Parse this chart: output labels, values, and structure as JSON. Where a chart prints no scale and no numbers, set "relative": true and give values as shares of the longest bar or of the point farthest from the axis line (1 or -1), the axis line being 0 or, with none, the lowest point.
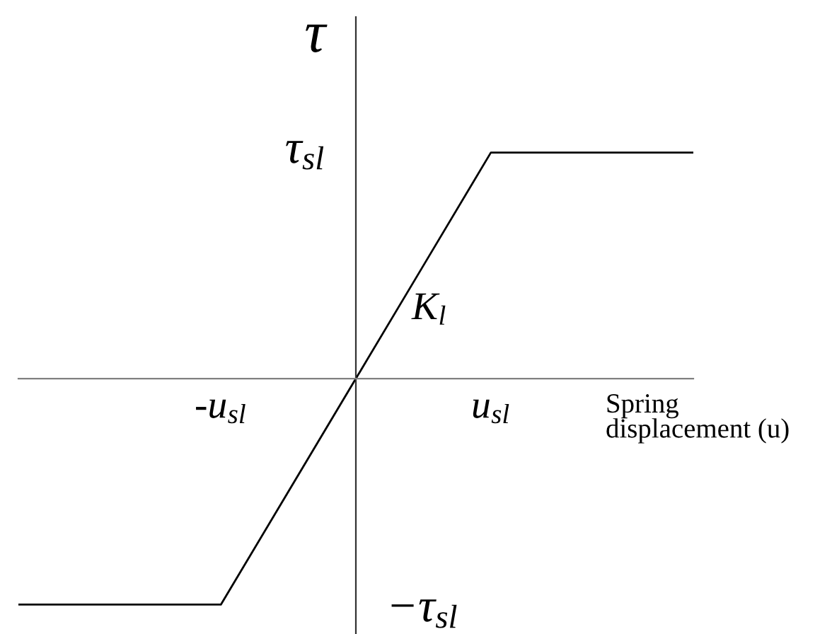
{
  "chart_data": {
    "type": "line",
    "relative": true,
    "categories": [
      null,
      null,
      null,
      "-u$_{sl}$",
      null,
      null,
      null,
      "u$_{sl}$",
      null,
      null,
      null
    ],
    "series": [
      {
        "color": "#000000",
        "values": [
          -1,
          -1,
          -1,
          -1,
          -0.5,
          0,
          0.5,
          1,
          1,
          1,
          1
        ]
      }
    ],
    "xlabel": "Spring\ndisplacement (u)",
    "ylabel": "τ",
    "annotations": [
      "τ$_{sl}$",
      "K$_{l}$",
      "−τ$_{sl}$"
    ]
  }
}
